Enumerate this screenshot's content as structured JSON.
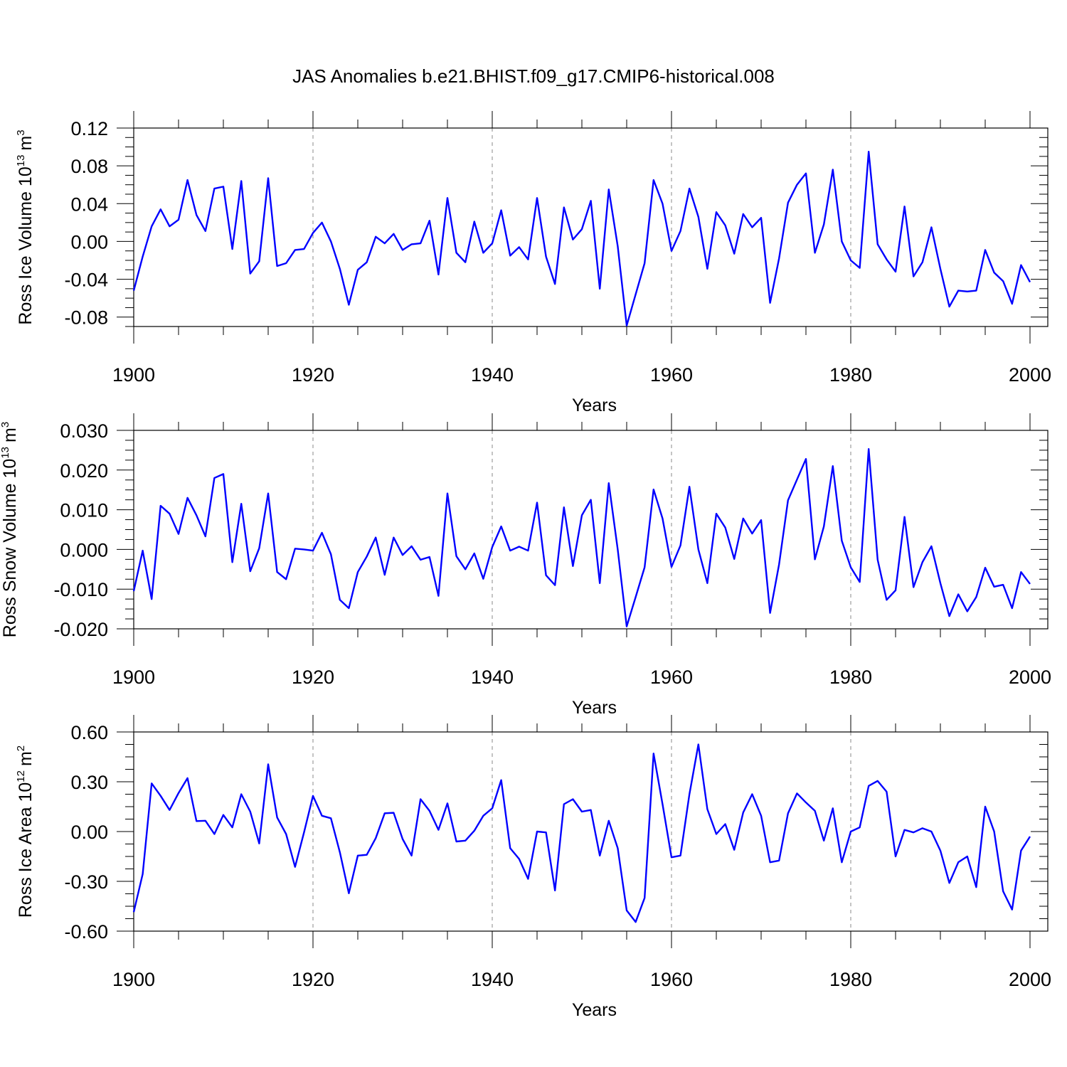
{
  "title": "JAS Anomalies b.e21.BHIST.f09_g17.CMIP6-historical.008",
  "colors": {
    "line": "#0000ff",
    "axis": "#000000",
    "grid": "#888888"
  },
  "chart_data": [
    {
      "type": "line",
      "name": "ice-volume",
      "ylabel_main": "Ross Ice Volume 10",
      "ylabel_exp": "13",
      "ylabel_unit": "m",
      "ylabel_unit_exp": "3",
      "xlabel": "Years",
      "xlim": [
        1900,
        2000
      ],
      "ylim": [
        -0.09,
        0.12
      ],
      "xticks": [
        1900,
        1920,
        1940,
        1960,
        1980,
        2000
      ],
      "xtick_labels": [
        "1900",
        "1920",
        "1940",
        "1960",
        "1980",
        "2000"
      ],
      "yticks": [
        -0.08,
        -0.04,
        0.0,
        0.04,
        0.08,
        0.12
      ],
      "ytick_labels": [
        "-0.08",
        "-0.04",
        "0.00",
        "0.04",
        "0.08",
        "0.12"
      ],
      "grid_x": [
        1920,
        1940,
        1960,
        1980
      ],
      "x_start": 1900,
      "values": [
        -0.052,
        -0.016,
        0.016,
        0.034,
        0.016,
        0.023,
        0.065,
        0.028,
        0.011,
        0.056,
        0.058,
        -0.008,
        0.064,
        -0.034,
        -0.021,
        0.067,
        -0.026,
        -0.023,
        -0.009,
        -0.008,
        0.009,
        0.02,
        0.0,
        -0.029,
        -0.067,
        -0.03,
        -0.022,
        0.005,
        -0.002,
        0.008,
        -0.009,
        -0.003,
        -0.002,
        0.022,
        -0.035,
        0.046,
        -0.012,
        -0.022,
        0.021,
        -0.012,
        -0.002,
        0.033,
        -0.015,
        -0.006,
        -0.019,
        0.046,
        -0.016,
        -0.045,
        0.036,
        0.002,
        0.013,
        0.043,
        -0.05,
        0.055,
        -0.005,
        -0.089,
        -0.056,
        -0.023,
        0.065,
        0.04,
        -0.01,
        0.011,
        0.056,
        0.026,
        -0.029,
        0.031,
        0.017,
        -0.013,
        0.029,
        0.015,
        0.025,
        -0.065,
        -0.018,
        0.041,
        0.06,
        0.072,
        -0.012,
        0.018,
        0.076,
        0.0,
        -0.02,
        -0.028,
        0.095,
        -0.003,
        -0.019,
        -0.032,
        0.037,
        -0.037,
        -0.022,
        0.015,
        -0.029,
        -0.069,
        -0.052,
        -0.053,
        -0.052,
        -0.009,
        -0.033,
        -0.042,
        -0.066,
        -0.025,
        -0.043
      ]
    },
    {
      "type": "line",
      "name": "snow-volume",
      "ylabel_main": "Ross Snow Volume 10",
      "ylabel_exp": "13",
      "ylabel_unit": "m",
      "ylabel_unit_exp": "3",
      "xlabel": "Years",
      "xlim": [
        1900,
        2000
      ],
      "ylim": [
        -0.02,
        0.03
      ],
      "xticks": [
        1900,
        1920,
        1940,
        1960,
        1980,
        2000
      ],
      "xtick_labels": [
        "1900",
        "1920",
        "1940",
        "1960",
        "1980",
        "2000"
      ],
      "yticks": [
        -0.02,
        -0.01,
        0.0,
        0.01,
        0.02,
        0.03
      ],
      "ytick_labels": [
        "-0.020",
        "-0.010",
        "0.000",
        "0.010",
        "0.020",
        "0.030"
      ],
      "grid_x": [
        1920,
        1940,
        1960,
        1980
      ],
      "x_start": 1900,
      "values": [
        -0.0105,
        -0.0003,
        -0.0125,
        0.011,
        0.009,
        0.0039,
        0.013,
        0.0086,
        0.0033,
        0.018,
        0.019,
        -0.0032,
        0.0115,
        -0.0055,
        0.0003,
        0.0141,
        -0.0057,
        -0.0075,
        0.0002,
        0.0,
        -0.0003,
        0.0042,
        -0.0012,
        -0.0127,
        -0.0148,
        -0.0057,
        -0.0018,
        0.003,
        -0.0064,
        0.003,
        -0.0014,
        0.0008,
        -0.0026,
        -0.0019,
        -0.0117,
        0.0141,
        -0.0017,
        -0.005,
        -0.001,
        -0.0074,
        0.0006,
        0.0058,
        -0.0003,
        0.0007,
        -0.0003,
        0.0118,
        -0.0065,
        -0.009,
        0.0106,
        -0.0042,
        0.0086,
        0.0125,
        -0.0085,
        0.0167,
        0.0,
        -0.0194,
        -0.012,
        -0.0045,
        0.0151,
        0.0078,
        -0.0044,
        0.001,
        0.0158,
        0.0,
        -0.0085,
        0.009,
        0.0055,
        -0.0024,
        0.0078,
        0.004,
        0.0074,
        -0.016,
        -0.0038,
        0.0124,
        0.0176,
        0.0228,
        -0.0025,
        0.0058,
        0.021,
        0.0022,
        -0.0045,
        -0.0082,
        0.0253,
        -0.0026,
        -0.0127,
        -0.0103,
        0.0082,
        -0.0095,
        -0.0032,
        0.0008,
        -0.0085,
        -0.0168,
        -0.0113,
        -0.0156,
        -0.012,
        -0.0046,
        -0.0094,
        -0.0089,
        -0.0148,
        -0.0057,
        -0.0087
      ]
    },
    {
      "type": "line",
      "name": "ice-area",
      "ylabel_main": "Ross Ice Area 10",
      "ylabel_exp": "12",
      "ylabel_unit": "m",
      "ylabel_unit_exp": "2",
      "xlabel": "Years",
      "xlim": [
        1900,
        2000
      ],
      "ylim": [
        -0.6,
        0.6
      ],
      "xticks": [
        1900,
        1920,
        1940,
        1960,
        1980,
        2000
      ],
      "xtick_labels": [
        "1900",
        "1920",
        "1940",
        "1960",
        "1980",
        "2000"
      ],
      "yticks": [
        -0.6,
        -0.3,
        0.0,
        0.3,
        0.6
      ],
      "ytick_labels": [
        "-0.60",
        "-0.30",
        "0.00",
        "0.30",
        "0.60"
      ],
      "grid_x": [
        1920,
        1940,
        1960,
        1980
      ],
      "x_start": 1900,
      "values": [
        -0.485,
        -0.256,
        0.29,
        0.215,
        0.13,
        0.232,
        0.322,
        0.063,
        0.065,
        -0.015,
        0.1,
        0.025,
        0.225,
        0.12,
        -0.072,
        0.405,
        0.085,
        -0.015,
        -0.213,
        -0.005,
        0.215,
        0.095,
        0.08,
        -0.125,
        -0.372,
        -0.145,
        -0.14,
        -0.04,
        0.11,
        0.113,
        -0.045,
        -0.145,
        0.195,
        0.125,
        0.01,
        0.17,
        -0.06,
        -0.055,
        0.005,
        0.095,
        0.14,
        0.31,
        -0.1,
        -0.165,
        -0.285,
        0.0,
        -0.005,
        -0.355,
        0.165,
        0.195,
        0.12,
        0.13,
        -0.145,
        0.065,
        -0.1,
        -0.475,
        -0.545,
        -0.4,
        0.47,
        0.165,
        -0.155,
        -0.145,
        0.225,
        0.525,
        0.135,
        -0.015,
        0.045,
        -0.11,
        0.115,
        0.225,
        0.095,
        -0.185,
        -0.175,
        0.11,
        0.23,
        0.175,
        0.125,
        -0.055,
        0.14,
        -0.185,
        0.0,
        0.025,
        0.275,
        0.305,
        0.24,
        -0.15,
        0.01,
        -0.005,
        0.02,
        0.0,
        -0.115,
        -0.31,
        -0.185,
        -0.15,
        -0.335,
        0.15,
        0.0,
        -0.36,
        -0.47,
        -0.115,
        -0.03
      ]
    }
  ]
}
